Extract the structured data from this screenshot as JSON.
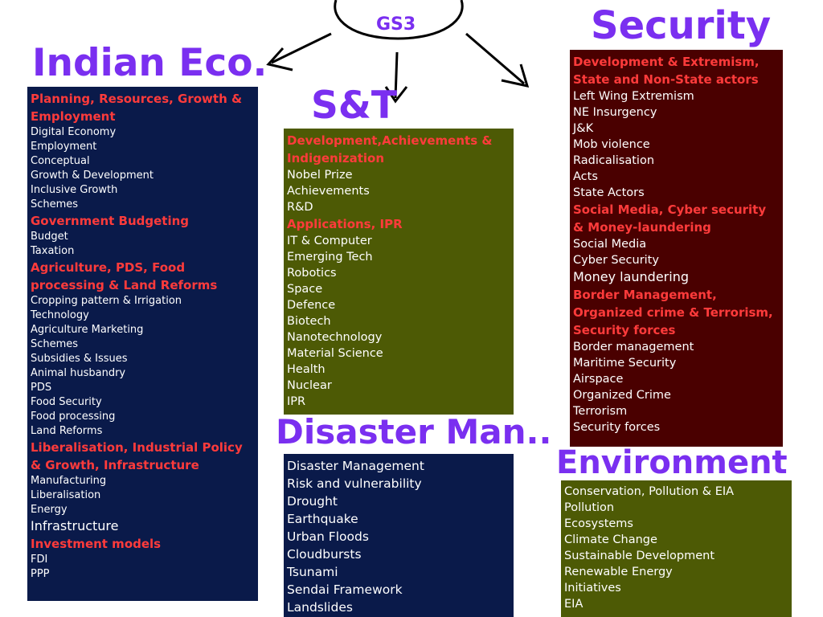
{
  "root": {
    "label": "GS3"
  },
  "indian_eco": {
    "title": "Indian Eco.",
    "items": [
      {
        "text": "Planning, Resources, Growth & Employment",
        "kind": "section"
      },
      {
        "text": "Digital Economy",
        "kind": "item"
      },
      {
        "text": "Employment",
        "kind": "item"
      },
      {
        "text": "Conceptual",
        "kind": "item"
      },
      {
        "text": "Growth & Development",
        "kind": "item"
      },
      {
        "text": "Inclusive Growth",
        "kind": "item"
      },
      {
        "text": "Schemes",
        "kind": "item"
      },
      {
        "text": "Government Budgeting",
        "kind": "section"
      },
      {
        "text": "Budget",
        "kind": "item"
      },
      {
        "text": "Taxation",
        "kind": "item"
      },
      {
        "text": "Agriculture, PDS, Food processing & Land Reforms",
        "kind": "section"
      },
      {
        "text": "Cropping pattern & Irrigation",
        "kind": "item"
      },
      {
        "text": "Technology",
        "kind": "item"
      },
      {
        "text": "Agriculture Marketing",
        "kind": "item"
      },
      {
        "text": "Schemes",
        "kind": "item"
      },
      {
        "text": "Subsidies & Issues",
        "kind": "item"
      },
      {
        "text": "Animal husbandry",
        "kind": "item"
      },
      {
        "text": "PDS",
        "kind": "item"
      },
      {
        "text": "Food Security",
        "kind": "item"
      },
      {
        "text": "Food processing",
        "kind": "item"
      },
      {
        "text": "Land Reforms",
        "kind": "item"
      },
      {
        "text": "Liberalisation, Industrial Policy & Growth, Infrastructure",
        "kind": "section"
      },
      {
        "text": "Manufacturing",
        "kind": "item"
      },
      {
        "text": "Liberalisation",
        "kind": "item"
      },
      {
        "text": "Energy",
        "kind": "item"
      },
      {
        "text": "Infrastructure",
        "kind": "item-large"
      },
      {
        "text": "Investment models",
        "kind": "section"
      },
      {
        "text": "FDI",
        "kind": "item"
      },
      {
        "text": "PPP",
        "kind": "item"
      }
    ]
  },
  "snt": {
    "title": "S&T",
    "items": [
      {
        "text": "Development,Achievements & Indigenization",
        "kind": "section"
      },
      {
        "text": "Nobel Prize",
        "kind": "item"
      },
      {
        "text": "Achievements",
        "kind": "item"
      },
      {
        "text": "R&D",
        "kind": "item"
      },
      {
        "text": "Applications, IPR",
        "kind": "section"
      },
      {
        "text": "IT & Computer",
        "kind": "item"
      },
      {
        "text": "Emerging Tech",
        "kind": "item"
      },
      {
        "text": "Robotics",
        "kind": "item"
      },
      {
        "text": "Space",
        "kind": "item"
      },
      {
        "text": "Defence",
        "kind": "item"
      },
      {
        "text": "Biotech",
        "kind": "item"
      },
      {
        "text": "Nanotechnology",
        "kind": "item"
      },
      {
        "text": "Material Science",
        "kind": "item"
      },
      {
        "text": "Health",
        "kind": "item"
      },
      {
        "text": "Nuclear",
        "kind": "item"
      },
      {
        "text": "IPR",
        "kind": "item"
      }
    ]
  },
  "security": {
    "title": "Security",
    "items": [
      {
        "text": "Development & Extremism, State and Non-State actors",
        "kind": "section"
      },
      {
        "text": "Left Wing Extremism",
        "kind": "item"
      },
      {
        "text": "NE Insurgency",
        "kind": "item"
      },
      {
        "text": "J&K",
        "kind": "item"
      },
      {
        "text": "Mob violence",
        "kind": "item"
      },
      {
        "text": "Radicalisation",
        "kind": "item"
      },
      {
        "text": "Acts",
        "kind": "item"
      },
      {
        "text": "State Actors",
        "kind": "item"
      },
      {
        "text": "Social Media, Cyber security & Money-laundering",
        "kind": "section"
      },
      {
        "text": "Social Media",
        "kind": "item"
      },
      {
        "text": "Cyber Security",
        "kind": "item"
      },
      {
        "text": "Money laundering",
        "kind": "item-large"
      },
      {
        "text": "Border Management, Organized crime & Terrorism, Security forces",
        "kind": "section"
      },
      {
        "text": "Border management",
        "kind": "item"
      },
      {
        "text": "Maritime Security",
        "kind": "item"
      },
      {
        "text": "Airspace",
        "kind": "item"
      },
      {
        "text": "Organized Crime",
        "kind": "item"
      },
      {
        "text": "Terrorism",
        "kind": "item"
      },
      {
        "text": "Security forces",
        "kind": "item"
      }
    ]
  },
  "disaster": {
    "title": "Disaster Man..",
    "items": [
      {
        "text": "Disaster Management",
        "kind": "item"
      },
      {
        "text": "Risk and vulnerability",
        "kind": "item"
      },
      {
        "text": "Drought",
        "kind": "item"
      },
      {
        "text": "Earthquake",
        "kind": "item"
      },
      {
        "text": "Urban Floods",
        "kind": "item"
      },
      {
        "text": "Cloudbursts",
        "kind": "item"
      },
      {
        "text": "Tsunami",
        "kind": "item"
      },
      {
        "text": "Sendai Framework",
        "kind": "item"
      },
      {
        "text": "Landslides",
        "kind": "item"
      }
    ]
  },
  "environment": {
    "title": "Environment",
    "items": [
      {
        "text": "Conservation, Pollution & EIA",
        "kind": "item"
      },
      {
        "text": "Pollution",
        "kind": "item"
      },
      {
        "text": "Ecosystems",
        "kind": "item"
      },
      {
        "text": "Climate Change",
        "kind": "item"
      },
      {
        "text": "Sustainable Development",
        "kind": "item"
      },
      {
        "text": "Renewable Energy",
        "kind": "item"
      },
      {
        "text": "Initiatives",
        "kind": "item"
      },
      {
        "text": "EIA",
        "kind": "item"
      }
    ]
  },
  "colors": {
    "heading": "#7a2ff0",
    "section_text": "#ff3b3b",
    "item_text": "#ffffff",
    "navy_panel": "#0a1a4a",
    "olive_panel": "#4d5a05",
    "maroon_panel": "#4a0000"
  }
}
